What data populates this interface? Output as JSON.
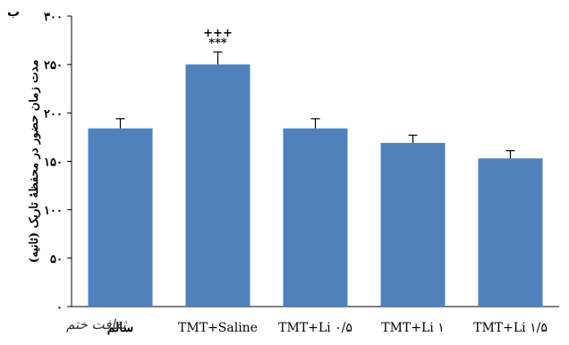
{
  "panel_label": "ب",
  "logo_text": "ثقافت ختم",
  "colors": {
    "bar": "#4f81bd",
    "axis": "#000000"
  },
  "chart_data": {
    "type": "bar",
    "title": "",
    "xlabel": "",
    "ylabel": "مدت زمان حضور در محفظهٔ تاریک (ثانیه)",
    "ylim": [
      0,
      300
    ],
    "yticks": [
      0,
      50,
      100,
      150,
      200,
      250,
      300
    ],
    "ytick_labels": [
      "۰",
      "۵۰",
      "۱۰۰",
      "۱۵۰",
      "۲۰۰",
      "۲۵۰",
      "۳۰۰"
    ],
    "grid": false,
    "categories": [
      "سالم",
      "TMT+Saline",
      "TMT+Li ۰/۵",
      "TMT+Li ۱",
      "TMT+Li ۱/۵"
    ],
    "values": [
      184,
      250,
      184,
      169,
      153
    ],
    "errors": [
      10,
      13,
      10,
      8,
      8
    ],
    "annotations": [
      {
        "category_index": 1,
        "lines": [
          "+++",
          "***"
        ]
      }
    ]
  }
}
